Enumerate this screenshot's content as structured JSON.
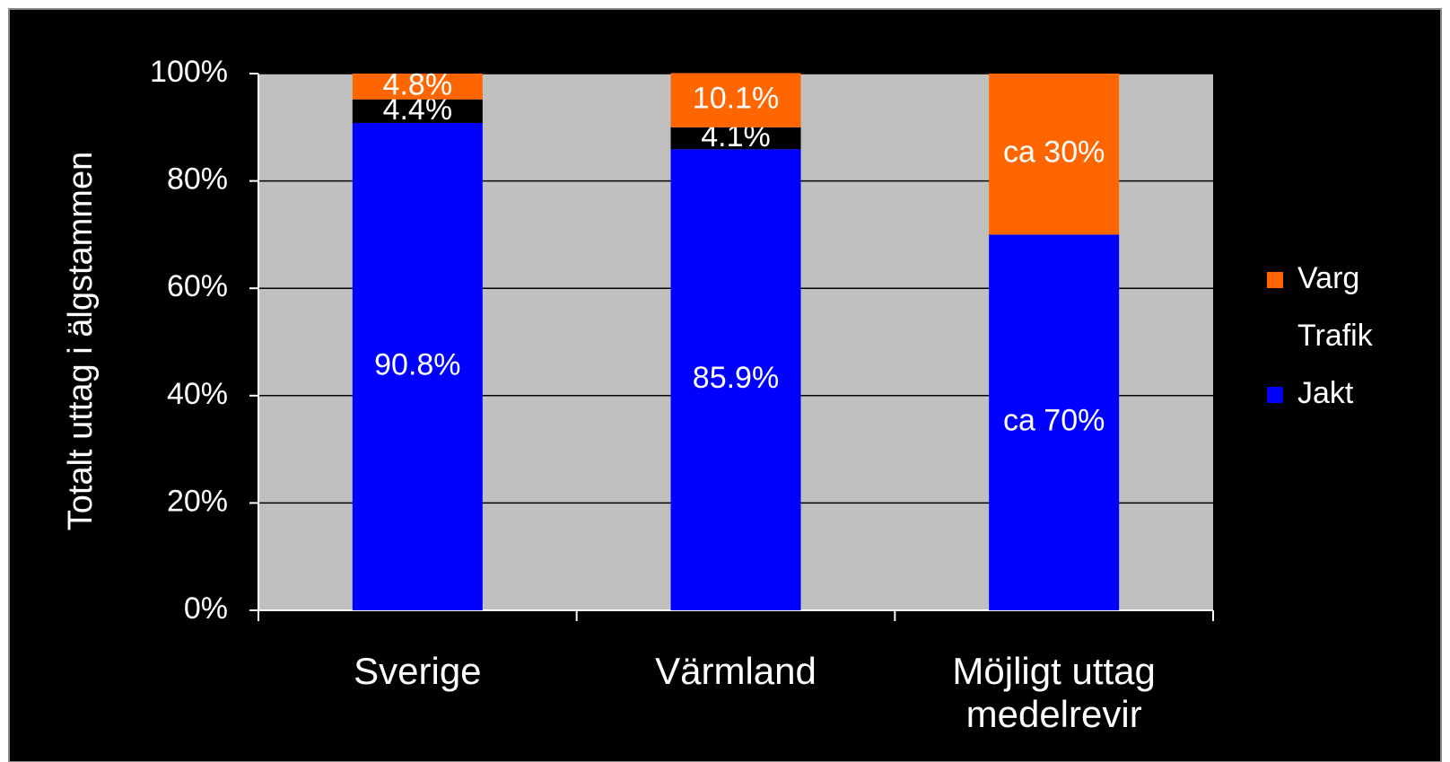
{
  "chart_data": {
    "type": "stacked_bar",
    "y_axis_label": "Totalt uttag i älgstammen",
    "categories": [
      "Sverige",
      "Värmland",
      "Möjligt uttag medelrevir"
    ],
    "series": [
      {
        "name": "Jakt",
        "color": "#0000ff",
        "values": [
          90.8,
          85.9,
          70
        ],
        "value_labels": [
          "90.8%",
          "85.9%",
          "ca 70%"
        ]
      },
      {
        "name": "Trafik",
        "color": "#000000",
        "values": [
          4.4,
          4.1,
          null
        ],
        "value_labels": [
          "4.4%",
          "4.1%",
          null
        ]
      },
      {
        "name": "Varg",
        "color": "#ff6600",
        "values": [
          4.8,
          10.1,
          30
        ],
        "value_labels": [
          "4.8%",
          "10.1%",
          "ca 30%"
        ]
      }
    ],
    "ylim": [
      0,
      100
    ],
    "yticks": [
      {
        "value": 0,
        "label": "0%"
      },
      {
        "value": 20,
        "label": "20%"
      },
      {
        "value": 40,
        "label": "40%"
      },
      {
        "value": 60,
        "label": "60%"
      },
      {
        "value": 80,
        "label": "80%"
      },
      {
        "value": 100,
        "label": "100%"
      }
    ],
    "grid": true,
    "legend": "right",
    "plot_background": "#c0c0c0"
  }
}
